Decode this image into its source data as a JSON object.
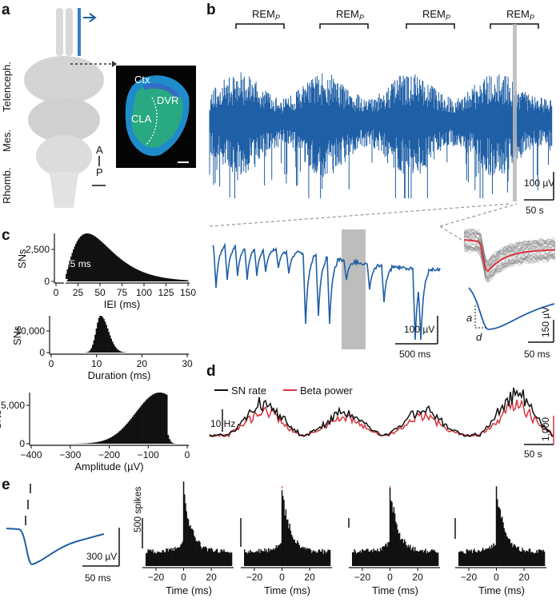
{
  "panels": {
    "a": {
      "label": "a",
      "regions": [
        "Rhomb.",
        "Mes.",
        "Telenceph."
      ],
      "axis_a": "A",
      "axis_p": "P",
      "section_labels": {
        "ctx": "Ctx",
        "cla": "CLA",
        "dvr": "DVR"
      }
    },
    "b": {
      "label": "b",
      "rem_label": "REM",
      "rem_sub": "P",
      "scale_top_v": "100 µV",
      "scale_top_t": "50 s",
      "scale_mid_v": "100 µV",
      "scale_mid_t": "500 ms",
      "scale_right_v": "150 µV",
      "scale_right_t": "50 ms",
      "amp_symbol": "a",
      "dur_symbol": "d"
    },
    "c": {
      "label": "c",
      "ylabel": "SNs",
      "mean_annotation": "38.5 ms",
      "histograms": [
        {
          "xlabel": "IEI (ms)",
          "xticks": [
            "0",
            "25",
            "50",
            "75",
            "100",
            "125",
            "150"
          ],
          "yticks": [
            "0",
            "2,500"
          ]
        },
        {
          "xlabel": "Duration (ms)",
          "xticks": [
            "0",
            "10",
            "20",
            "30"
          ],
          "yticks": [
            "0",
            "10,000"
          ]
        },
        {
          "xlabel": "Amplitude (µV)",
          "xticks": [
            "−400",
            "−300",
            "−200",
            "−100",
            "0"
          ],
          "yticks": [
            "0",
            "5,000"
          ]
        }
      ]
    },
    "d": {
      "label": "d",
      "legend": [
        {
          "name": "SN rate",
          "color": "#111111"
        },
        {
          "name": "Beta power",
          "color": "#d7343f"
        }
      ],
      "scale_left": "10 Hz",
      "scale_right": "1,000",
      "scale_time": "50 s"
    },
    "e": {
      "label": "e",
      "scale_v": "300 µV",
      "scale_t": "50 ms",
      "ylabel": "500 spikes",
      "xlabel": "Time (ms)",
      "xticks": [
        "−20",
        "0",
        "20"
      ]
    }
  },
  "colors": {
    "trace": "#1f5fa6",
    "red": "#d7343f",
    "black": "#111111",
    "gray": "#bdbdbd"
  }
}
